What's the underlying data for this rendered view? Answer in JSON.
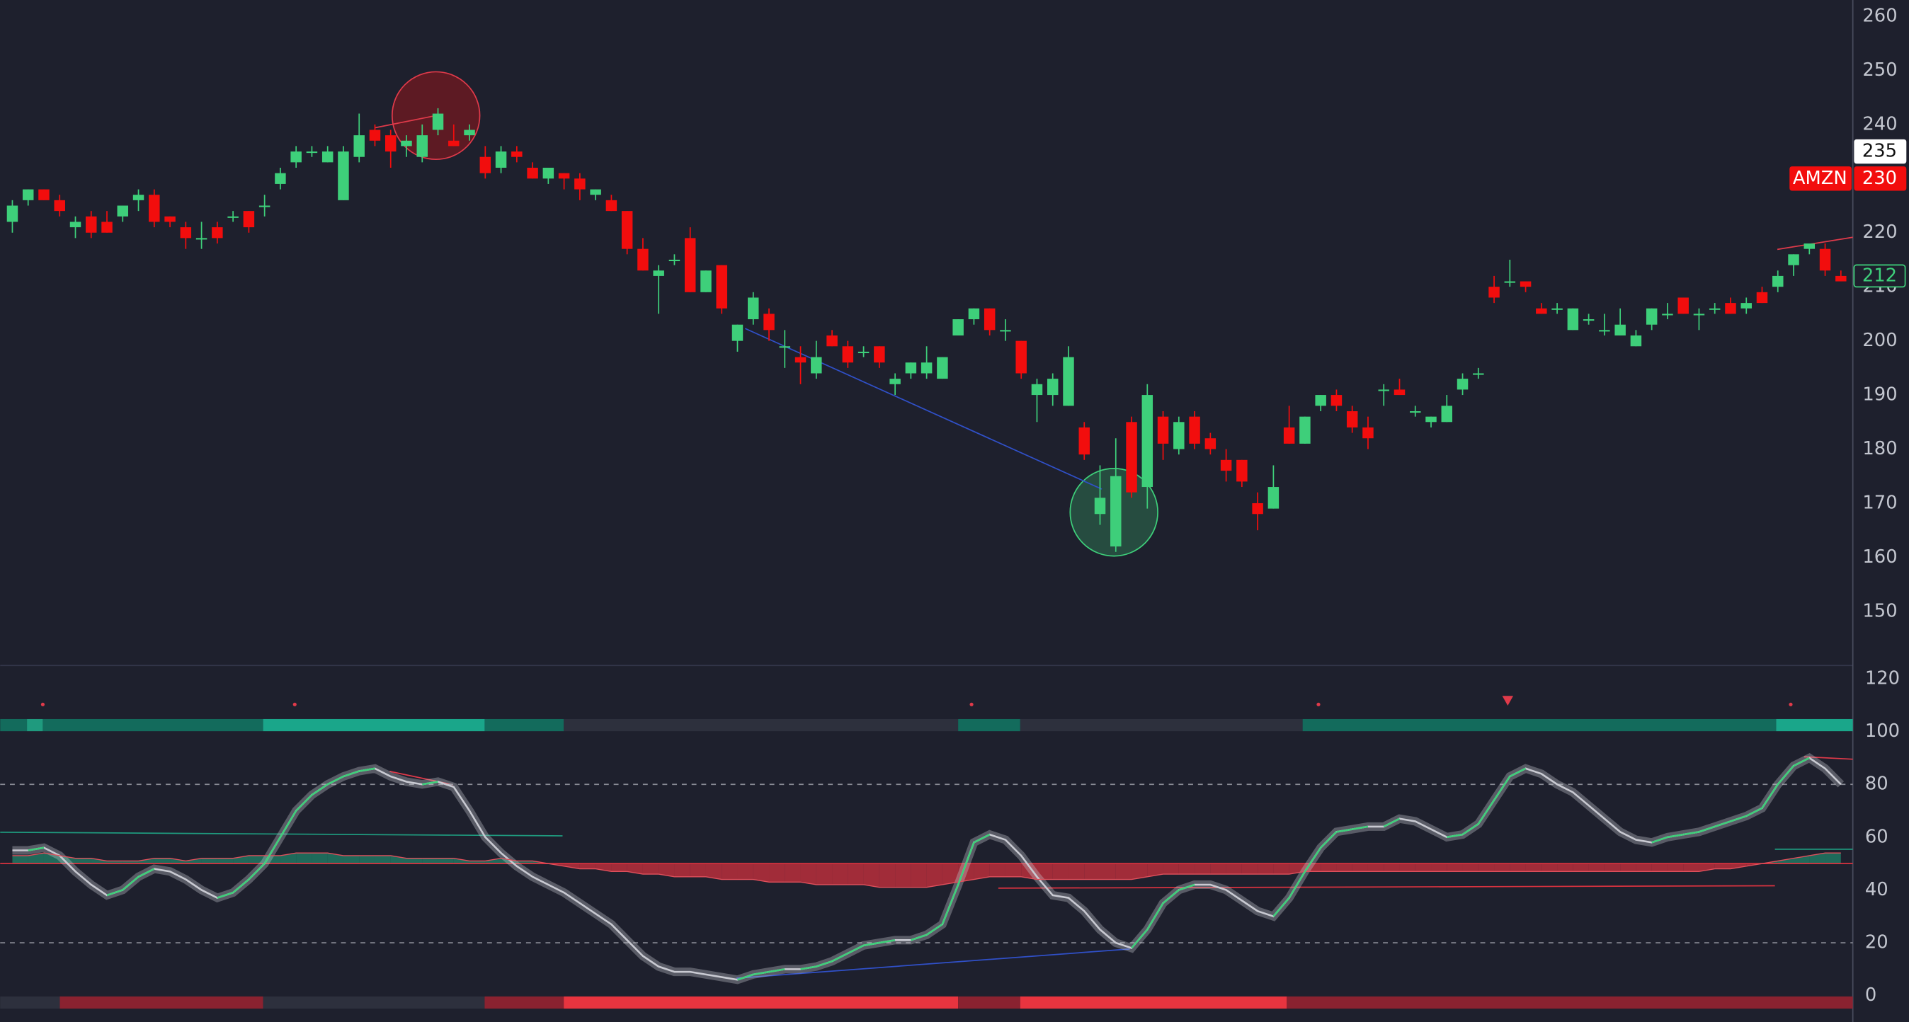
{
  "chart_data": [
    {
      "type": "candlestick",
      "up_color": "#3ecf7a",
      "down_color": "#f20d0d",
      "open": [
        222,
        226,
        228,
        226,
        221,
        223,
        222,
        223,
        226,
        227,
        223,
        221,
        219,
        221,
        223,
        224,
        225,
        229,
        233,
        235,
        233,
        226,
        234,
        239,
        238,
        236,
        234,
        239,
        237,
        238,
        234,
        232,
        235,
        232,
        230,
        231,
        230,
        227,
        226,
        224,
        217,
        212,
        215,
        219,
        209,
        214,
        200,
        204,
        205,
        199,
        197,
        194,
        201,
        199,
        198,
        199,
        192,
        194,
        194,
        193,
        201,
        204,
        206,
        202,
        200,
        190,
        190,
        188,
        184,
        168,
        162,
        185,
        173,
        186,
        180,
        186,
        182,
        178,
        178,
        170,
        169,
        184,
        181,
        188,
        190,
        187,
        184,
        191,
        191,
        187,
        185,
        185,
        191,
        194,
        210,
        211,
        211,
        206,
        206,
        202,
        204,
        202,
        201,
        199,
        203,
        205,
        208,
        205,
        206,
        207,
        206,
        209,
        210,
        214,
        217,
        217,
        212
      ],
      "high": [
        226,
        228,
        228,
        227,
        223,
        224,
        224,
        225,
        228,
        228,
        223,
        222,
        222,
        222,
        224,
        224,
        227,
        232,
        236,
        236,
        236,
        236,
        242,
        240,
        239,
        238,
        240,
        243,
        240,
        240,
        236,
        236,
        236,
        233,
        232,
        231,
        231,
        228,
        227,
        224,
        219,
        214,
        216,
        221,
        213,
        214,
        203,
        209,
        206,
        202,
        199,
        200,
        202,
        200,
        199,
        199,
        194,
        196,
        199,
        197,
        204,
        206,
        206,
        204,
        200,
        193,
        194,
        199,
        185,
        177,
        182,
        186,
        192,
        187,
        186,
        187,
        183,
        180,
        178,
        172,
        177,
        188,
        186,
        190,
        191,
        188,
        186,
        192,
        193,
        188,
        186,
        190,
        194,
        195,
        212,
        215,
        211,
        207,
        207,
        206,
        205,
        205,
        206,
        202,
        206,
        207,
        208,
        206,
        207,
        208,
        208,
        210,
        213,
        216,
        218,
        218,
        213
      ],
      "low": [
        220,
        225,
        226,
        223,
        219,
        219,
        220,
        222,
        224,
        221,
        221,
        217,
        217,
        218,
        222,
        220,
        223,
        228,
        232,
        234,
        233,
        226,
        233,
        236,
        232,
        234,
        233,
        238,
        236,
        237,
        230,
        231,
        233,
        230,
        229,
        228,
        226,
        226,
        224,
        216,
        213,
        205,
        214,
        209,
        209,
        205,
        198,
        203,
        200,
        195,
        192,
        193,
        199,
        195,
        197,
        195,
        190,
        193,
        193,
        193,
        201,
        203,
        201,
        200,
        193,
        185,
        188,
        188,
        178,
        166,
        161,
        171,
        169,
        178,
        179,
        180,
        179,
        174,
        173,
        165,
        169,
        181,
        181,
        187,
        187,
        183,
        180,
        188,
        190,
        186,
        184,
        185,
        190,
        193,
        207,
        210,
        209,
        205,
        205,
        202,
        203,
        201,
        201,
        199,
        202,
        204,
        205,
        202,
        205,
        205,
        205,
        207,
        209,
        212,
        216,
        212,
        211
      ],
      "close": [
        225,
        228,
        226,
        224,
        222,
        220,
        220,
        225,
        227,
        222,
        222,
        219,
        219,
        219,
        223,
        221,
        225,
        231,
        235,
        235,
        235,
        235,
        238,
        237,
        235,
        237,
        238,
        242,
        236,
        239,
        231,
        235,
        234,
        230,
        232,
        230,
        228,
        228,
        224,
        217,
        213,
        213,
        215,
        209,
        213,
        206,
        203,
        208,
        202,
        199,
        196,
        197,
        199,
        196,
        198,
        196,
        193,
        196,
        196,
        197,
        204,
        206,
        202,
        202,
        194,
        192,
        193,
        197,
        179,
        171,
        175,
        172,
        190,
        181,
        185,
        181,
        180,
        176,
        174,
        168,
        173,
        181,
        186,
        190,
        188,
        184,
        182,
        191,
        190,
        187,
        186,
        188,
        193,
        194,
        208,
        211,
        210,
        205,
        206,
        206,
        204,
        202,
        203,
        201,
        206,
        205,
        205,
        205,
        206,
        205,
        207,
        207,
        212,
        216,
        218,
        213,
        211
      ],
      "ylim": [
        140,
        263
      ],
      "yticks": [
        150,
        160,
        170,
        180,
        190,
        200,
        210,
        220,
        230,
        240,
        250,
        260
      ],
      "price_tags": {
        "high": 235,
        "symbol": "AMZN",
        "close": 230,
        "last": 212
      }
    },
    {
      "type": "oscillator",
      "ylim": [
        -10,
        125
      ],
      "yticks": [
        0,
        20,
        40,
        60,
        80,
        100,
        120
      ],
      "levels": [
        20,
        80
      ],
      "baseline": 50,
      "rise_color": "#3ecf7a",
      "fall_color": "#c9cad2",
      "above_color": "#1f8a6e",
      "below_color": "#d8323f",
      "series": [
        {
          "color": "#c9cad2",
          "values": [
            55,
            55,
            56,
            53,
            47,
            42,
            38,
            40,
            45,
            48,
            47,
            44,
            40,
            37,
            39,
            44,
            50,
            60,
            70,
            76,
            80,
            83,
            85,
            86,
            83,
            81,
            80,
            81,
            79,
            70,
            60,
            54,
            49,
            45,
            42,
            39,
            35,
            31,
            27,
            21,
            15,
            11,
            9,
            9,
            8,
            7,
            6,
            8,
            9,
            10,
            10,
            11,
            13,
            16,
            19,
            20,
            21,
            21,
            23,
            27,
            42,
            58,
            61,
            59,
            53,
            45,
            38,
            37,
            32,
            25,
            20,
            18,
            25,
            35,
            40,
            42,
            42,
            40,
            36,
            32,
            30,
            37,
            47,
            56,
            62,
            63,
            64,
            64,
            67,
            66,
            63,
            60,
            61,
            65,
            74,
            83,
            86,
            84,
            80,
            77,
            72,
            67,
            62,
            59,
            58,
            60,
            61,
            62,
            64,
            66,
            68,
            71,
            80,
            87,
            90,
            86,
            80
          ]
        },
        {
          "color": "#e0505c",
          "values": [
            53,
            53,
            54,
            53,
            52,
            52,
            51,
            51,
            51,
            52,
            52,
            51,
            52,
            52,
            52,
            53,
            53,
            53,
            54,
            54,
            54,
            53,
            53,
            53,
            53,
            52,
            52,
            52,
            52,
            51,
            51,
            52,
            51,
            51,
            50,
            49,
            48,
            48,
            47,
            47,
            46,
            46,
            45,
            45,
            45,
            44,
            44,
            44,
            43,
            43,
            43,
            42,
            42,
            42,
            42,
            41,
            41,
            41,
            41,
            42,
            43,
            44,
            45,
            45,
            45,
            44,
            44,
            44,
            44,
            44,
            44,
            44,
            45,
            46,
            46,
            46,
            46,
            46,
            46,
            46,
            46,
            46,
            47,
            47,
            47,
            47,
            47,
            47,
            47,
            47,
            47,
            47,
            47,
            47,
            47,
            47,
            47,
            47,
            47,
            47,
            47,
            47,
            47,
            47,
            47,
            47,
            47,
            47,
            48,
            48,
            49,
            50,
            51,
            52,
            53,
            54,
            54
          ]
        }
      ]
    }
  ]
}
